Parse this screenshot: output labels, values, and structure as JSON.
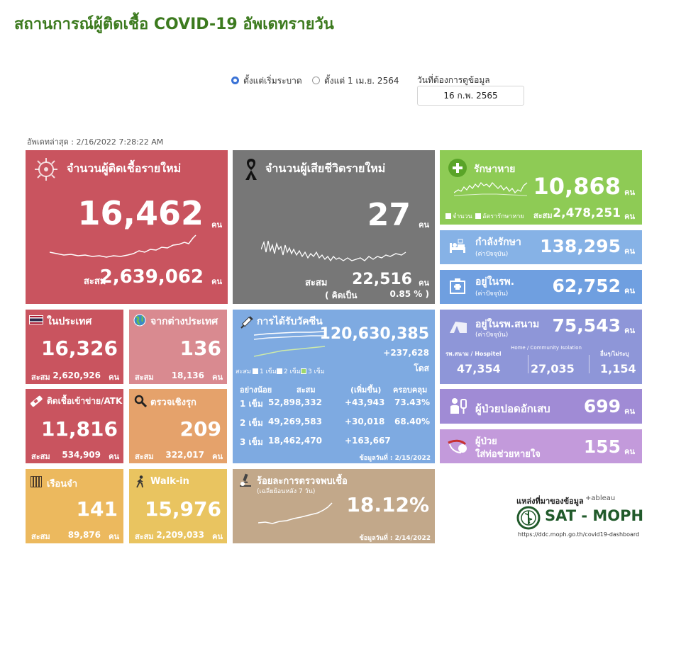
{
  "title": "สถานการณ์ผู้ติดเชื้อ COVID-19 อัพเดทรายวัน",
  "controls": {
    "radio_1": "ตั้งแต่เริ่มระบาด",
    "radio_2": "ตั้งแต่ 1 เม.ย. 2564",
    "date_label": "วันที่ต้องการดูข้อมูล",
    "date_value": "16 ก.พ. 2565"
  },
  "updated": "อัพเดทล่าสุด : 2/16/2022 7:28:22 AM",
  "unit": "คน",
  "accum_label": "สะสม",
  "new_cases": {
    "title": "จำนวนผู้ติดเชื้อรายใหม่",
    "value": "16,462",
    "accum": "2,639,062"
  },
  "deaths": {
    "title": "จำนวนผู้เสียชีวิตรายใหม่",
    "value": "27",
    "accum": "22,516",
    "rate_label": "( คิดเป็น",
    "rate": "0.85 % )"
  },
  "recovered": {
    "title": "รักษาหาย",
    "value": "10,868",
    "legend_count": "จำนวน",
    "legend_rate": "อัตรารักษาหาย",
    "accum": "2,478,251"
  },
  "treating": {
    "title": "กำลังรักษา",
    "sub": "(ค่าปัจจุบัน)",
    "value": "138,295"
  },
  "hospital": {
    "title": "อยู่ในรพ.",
    "sub": "(ค่าปัจจุบัน)",
    "value": "62,752"
  },
  "field_hospital": {
    "title": "อยู่ในรพ.สนาม",
    "sub": "(ค่าปัจจุบัน)",
    "value": "75,543",
    "col1_label": "รพ.สนาม / Hospitel",
    "col1_value": "47,354",
    "col2_label": "Home / Community Isolation",
    "col2_value": "27,035",
    "col3_label": "อื่นๆ/ไม่ระบุ",
    "col3_value": "1,154"
  },
  "pneumonia": {
    "title": "ผู้ป่วยปอดอักเสบ",
    "value": "699"
  },
  "ventilator": {
    "title1": "ผู้ป่วย",
    "title2": "ใส่ท่อช่วยหายใจ",
    "value": "155"
  },
  "domestic": {
    "title": "ในประเทศ",
    "value": "16,326",
    "accum": "2,620,926"
  },
  "abroad": {
    "title": "จากต่างประเทศ",
    "value": "136",
    "accum": "18,136"
  },
  "atk": {
    "title": "ติดเชื้อเข้าข่าย/ATK",
    "value": "11,816",
    "accum": "534,909"
  },
  "proactive": {
    "title": "ตรวจเชิงรุก",
    "value": "209",
    "accum": "322,017"
  },
  "prison": {
    "title": "เรือนจำ",
    "value": "141",
    "accum": "89,876"
  },
  "walkin": {
    "title": "Walk-in",
    "value": "15,976",
    "accum": "2,209,033"
  },
  "vaccine": {
    "title": "การได้รับวัคซีน",
    "total": "120,630,385",
    "increase": "+237,628",
    "dose_unit": "โดส",
    "legend": [
      "1 เข็ม",
      "2 เข็ม",
      "3 เข็ม"
    ],
    "headers": [
      "อย่างน้อย",
      "สะสม",
      "(เพิ่มขึ้น)",
      "ครอบคลุม"
    ],
    "rows": [
      {
        "dose": "1 เข็ม",
        "accum": "52,898,332",
        "inc": "+43,943",
        "coverage": "73.43%"
      },
      {
        "dose": "2 เข็ม",
        "accum": "49,269,583",
        "inc": "+30,018",
        "coverage": "68.40%"
      },
      {
        "dose": "3 เข็ม",
        "accum": "18,462,470",
        "inc": "+163,667",
        "coverage": ""
      }
    ],
    "data_date": "ข้อมูลวันที่ : 2/15/2022"
  },
  "positivity": {
    "title": "ร้อยละการตรวจพบเชื้อ",
    "sub": "(เฉลี่ยย้อนหลัง 7 วัน)",
    "value": "18.12%",
    "data_date": "ข้อมูลวันที่ : 2/14/2022"
  },
  "source": {
    "title": "แหล่งที่มาของข้อมูล",
    "tableau": "+ableau",
    "org": "SAT - MOPH",
    "url": "https://ddc.moph.go.th/covid19-dashboard"
  },
  "colors": {
    "red": "#c9545f",
    "gray": "#777777",
    "green": "#8ecb55",
    "blue_light": "#86b2e6",
    "blue": "#6f9fe0",
    "periwinkle": "#8e96d8",
    "purple": "#b88fd0",
    "pink": "#d98a90",
    "orange": "#e5a26b",
    "yellow": "#ecb95e",
    "vaccine": "#7eaae1",
    "tan": "#c2a88a"
  }
}
